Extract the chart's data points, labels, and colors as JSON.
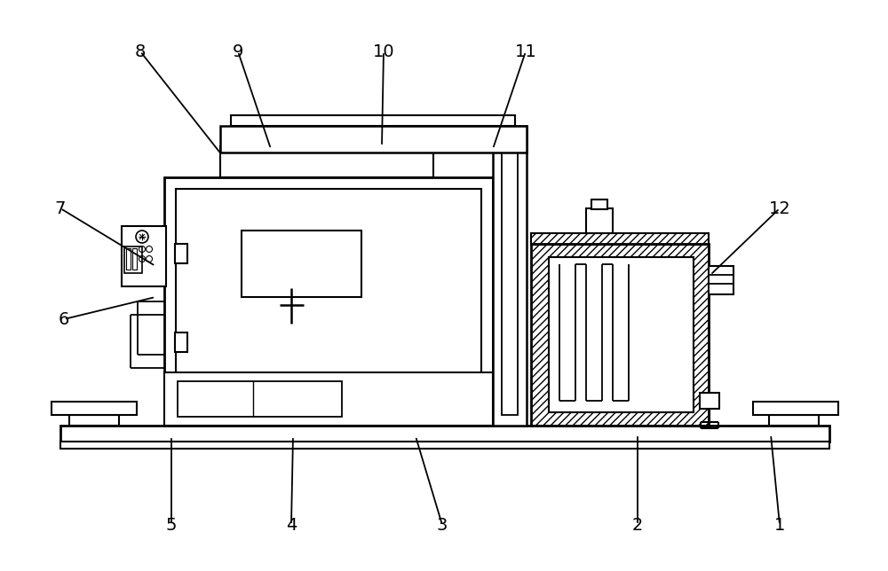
{
  "bg": "#ffffff",
  "lc": "#000000",
  "annotations": [
    [
      "1",
      878,
      592,
      868,
      490
    ],
    [
      "2",
      718,
      592,
      718,
      490
    ],
    [
      "3",
      498,
      592,
      468,
      492
    ],
    [
      "4",
      328,
      592,
      330,
      492
    ],
    [
      "5",
      193,
      592,
      193,
      492
    ],
    [
      "6",
      72,
      360,
      175,
      335
    ],
    [
      "7",
      68,
      235,
      175,
      300
    ],
    [
      "8",
      158,
      58,
      250,
      175
    ],
    [
      "9",
      268,
      58,
      305,
      168
    ],
    [
      "10",
      432,
      58,
      430,
      165
    ],
    [
      "11",
      592,
      58,
      555,
      168
    ],
    [
      "12",
      878,
      235,
      800,
      310
    ]
  ]
}
